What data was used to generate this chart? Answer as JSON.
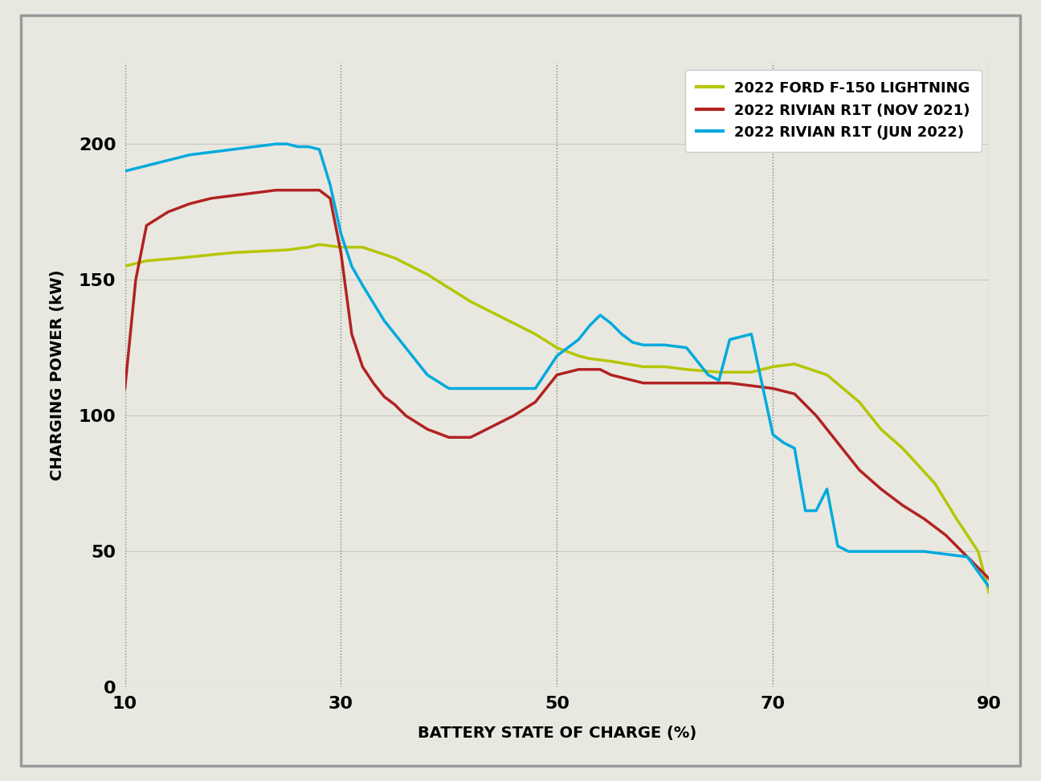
{
  "xlabel": "BATTERY STATE OF CHARGE (%)",
  "ylabel": "CHARGING POWER (kW)",
  "background_color": "#e8e8e0",
  "plot_bg_color": "#e8e8e0",
  "xlim": [
    10,
    90
  ],
  "ylim": [
    0,
    230
  ],
  "xticks": [
    10,
    30,
    50,
    70,
    90
  ],
  "yticks": [
    0,
    50,
    100,
    150,
    200
  ],
  "grid_color": "#cccccc",
  "ford_color": "#b5c500",
  "rivian_nov_color": "#b22222",
  "rivian_jun_color": "#00aadd",
  "ford_label": "2022 FORD F-150 LIGHTNING",
  "rivian_nov_label": "2022 RIVIAN R1T (NOV 2021)",
  "rivian_jun_label": "2022 RIVIAN R1T (JUN 2022)",
  "ford_x": [
    10,
    12,
    15,
    20,
    25,
    27,
    28,
    30,
    32,
    35,
    38,
    40,
    42,
    45,
    48,
    50,
    52,
    53,
    55,
    58,
    60,
    62,
    65,
    68,
    70,
    72,
    75,
    78,
    80,
    82,
    85,
    87,
    89,
    90
  ],
  "ford_y": [
    155,
    157,
    158,
    160,
    161,
    162,
    163,
    162,
    162,
    158,
    152,
    147,
    142,
    136,
    130,
    125,
    122,
    121,
    120,
    118,
    118,
    117,
    116,
    116,
    118,
    119,
    115,
    105,
    95,
    88,
    75,
    62,
    50,
    35
  ],
  "rivian_nov_x": [
    10,
    11,
    12,
    14,
    16,
    18,
    20,
    22,
    24,
    26,
    27,
    28,
    29,
    30,
    31,
    32,
    33,
    34,
    35,
    36,
    38,
    40,
    42,
    44,
    46,
    48,
    50,
    51,
    52,
    53,
    54,
    55,
    56,
    57,
    58,
    60,
    62,
    64,
    66,
    68,
    70,
    72,
    74,
    76,
    78,
    80,
    82,
    84,
    86,
    88,
    90
  ],
  "rivian_nov_y": [
    110,
    150,
    170,
    175,
    178,
    180,
    181,
    182,
    183,
    183,
    183,
    183,
    180,
    160,
    130,
    118,
    112,
    107,
    104,
    100,
    95,
    92,
    92,
    96,
    100,
    105,
    115,
    116,
    117,
    117,
    117,
    115,
    114,
    113,
    112,
    112,
    112,
    112,
    112,
    111,
    110,
    108,
    100,
    90,
    80,
    73,
    67,
    62,
    56,
    48,
    40
  ],
  "rivian_jun_x": [
    10,
    11,
    12,
    14,
    16,
    18,
    20,
    22,
    24,
    25,
    26,
    27,
    28,
    29,
    30,
    31,
    32,
    34,
    36,
    38,
    40,
    42,
    44,
    46,
    48,
    50,
    51,
    52,
    53,
    54,
    55,
    56,
    57,
    58,
    60,
    62,
    64,
    65,
    66,
    68,
    70,
    71,
    72,
    73,
    74,
    75,
    76,
    77,
    78,
    80,
    82,
    84,
    86,
    88,
    90
  ],
  "rivian_jun_y": [
    190,
    191,
    192,
    194,
    196,
    197,
    198,
    199,
    200,
    200,
    199,
    199,
    198,
    185,
    167,
    155,
    148,
    135,
    125,
    115,
    110,
    110,
    110,
    110,
    110,
    122,
    125,
    128,
    133,
    137,
    134,
    130,
    127,
    126,
    126,
    125,
    115,
    113,
    128,
    130,
    93,
    90,
    88,
    65,
    65,
    73,
    52,
    50,
    50,
    50,
    50,
    50,
    49,
    48,
    37
  ],
  "linewidth": 2.5
}
